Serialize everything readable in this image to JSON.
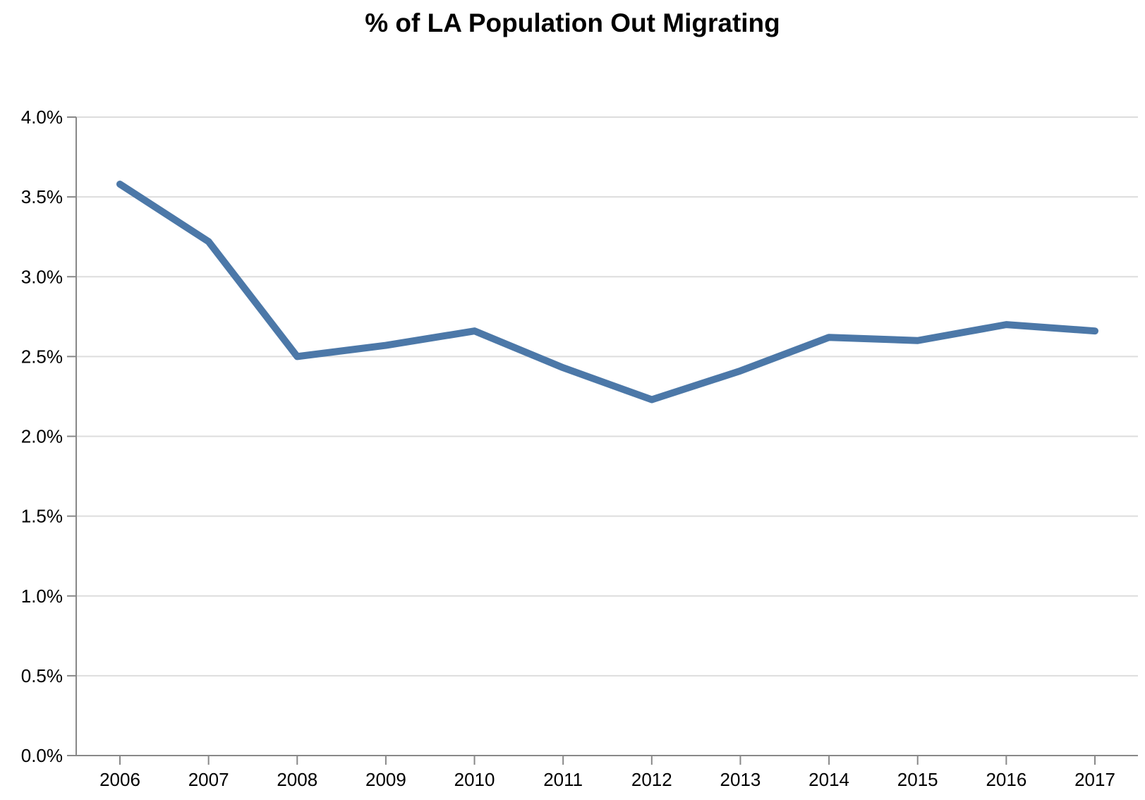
{
  "chart_data": {
    "type": "line",
    "title": "% of LA Population Out Migrating",
    "xlabel": "",
    "ylabel": "",
    "x": [
      "2006",
      "2007",
      "2008",
      "2009",
      "2010",
      "2011",
      "2012",
      "2013",
      "2014",
      "2015",
      "2016",
      "2017"
    ],
    "series": [
      {
        "values": [
          3.58,
          3.22,
          2.5,
          2.57,
          2.66,
          2.43,
          2.23,
          2.41,
          2.62,
          2.6,
          2.7,
          2.66
        ]
      }
    ],
    "ylim": [
      0,
      4
    ],
    "yticks": [
      0,
      0.5,
      1,
      1.5,
      2,
      2.5,
      3,
      3.5,
      4
    ],
    "ytick_labels": [
      "0.0%",
      "0.5%",
      "1.0%",
      "1.5%",
      "2.0%",
      "2.5%",
      "3.0%",
      "3.5%",
      "4.0%"
    ],
    "grid": true,
    "line_color": "#4c78a8",
    "grid_color": "#dddddd",
    "axis_color": "#888888"
  }
}
